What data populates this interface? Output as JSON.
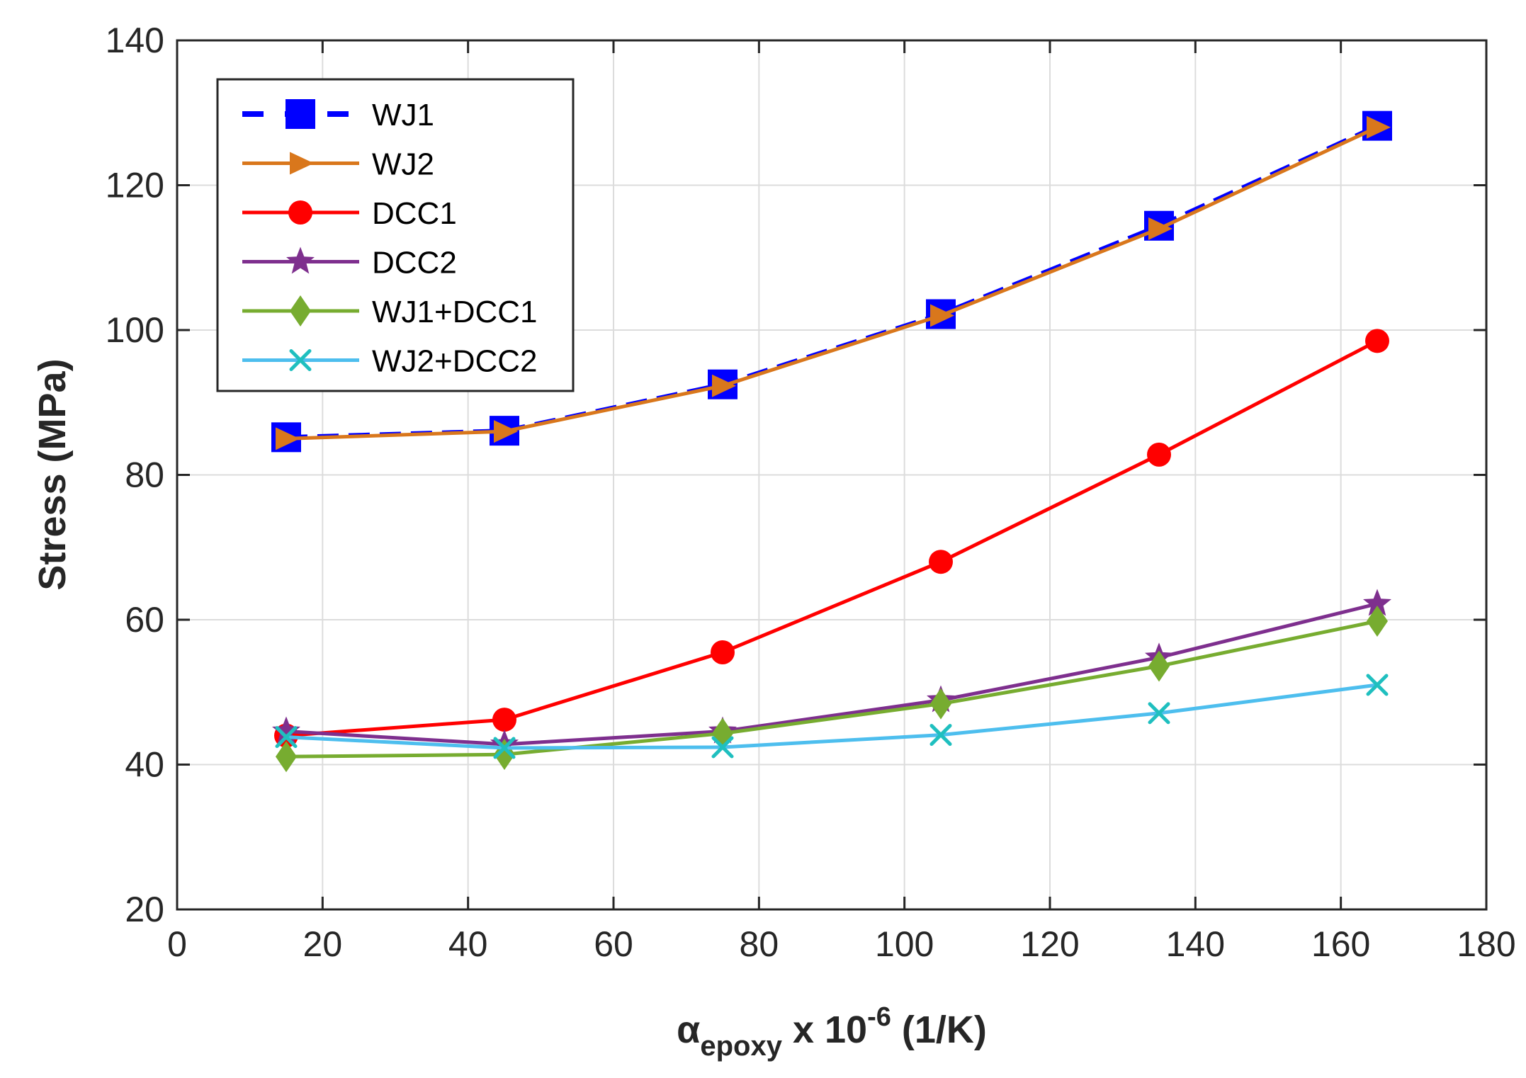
{
  "chart_data": {
    "type": "line",
    "title": "",
    "xlabel": {
      "symbol": "α",
      "subscript": "epoxy",
      "text": " x 10",
      "superscript": "-6",
      "unit": " (1/K)"
    },
    "ylabel": "Stress (MPa)",
    "xlim": [
      0,
      180
    ],
    "ylim": [
      20,
      140
    ],
    "xticks": [
      "0",
      "20",
      "40",
      "60",
      "80",
      "100",
      "120",
      "140",
      "160",
      "180"
    ],
    "yticks": [
      "20",
      "40",
      "60",
      "80",
      "100",
      "120",
      "140"
    ],
    "grid": true,
    "legend_position": "top-left",
    "x": [
      15,
      45,
      75,
      105,
      135,
      165
    ],
    "series": [
      {
        "name": "WJ1",
        "values": [
          85.2,
          86.1,
          92.5,
          102.2,
          114.4,
          128.2
        ],
        "color": "#0000FF",
        "marker": "square",
        "dashed": true
      },
      {
        "name": "WJ2",
        "values": [
          85.0,
          86.0,
          92.3,
          102.0,
          114.0,
          128.0
        ],
        "color": "#D9771C",
        "marker": "triangle-right",
        "dashed": false
      },
      {
        "name": "DCC1",
        "values": [
          44.0,
          46.2,
          55.5,
          68.0,
          82.8,
          98.5
        ],
        "color": "#FF0000",
        "marker": "circle",
        "dashed": false
      },
      {
        "name": "DCC2",
        "values": [
          44.6,
          42.8,
          44.6,
          48.9,
          54.8,
          62.2
        ],
        "color": "#7E2F8E",
        "marker": "star",
        "dashed": false
      },
      {
        "name": "WJ1+DCC1",
        "values": [
          41.1,
          41.4,
          44.3,
          48.4,
          53.6,
          59.8
        ],
        "color": "#77AC30",
        "marker": "diamond",
        "dashed": false
      },
      {
        "name": "WJ2+DCC2",
        "values": [
          43.8,
          42.3,
          42.4,
          44.1,
          47.1,
          51.0
        ],
        "color": "#4DBEEE",
        "marker": "x",
        "dashed": false
      }
    ]
  }
}
